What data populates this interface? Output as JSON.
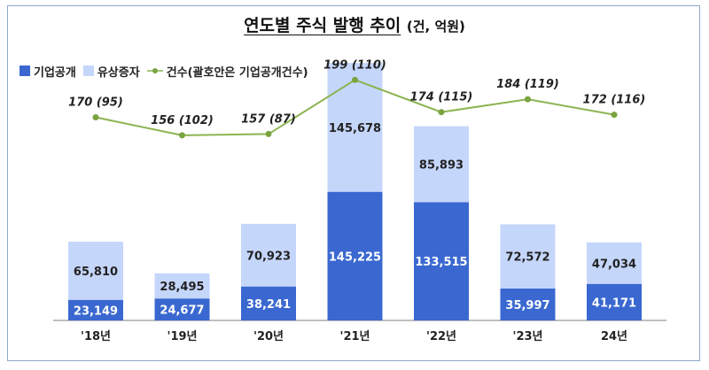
{
  "title": "연도별 주식 발행 추이",
  "unit": "(건, 억원)",
  "colors": {
    "ipo": "#3a68d0",
    "rights": "#c5d6fb",
    "line": "#8cb451",
    "line_marker": "#7aa33f",
    "label_dark": "#222222",
    "label_light": "#ffffff"
  },
  "legend": {
    "ipo": "기업공개",
    "rights": "유상증자",
    "count": "건수(괄호안은 기업공개건수)"
  },
  "chart_data": {
    "type": "bar",
    "stacked": true,
    "categories": [
      "'18년",
      "'19년",
      "'20년",
      "'21년",
      "'22년",
      "'23년",
      "24년"
    ],
    "series": [
      {
        "name": "기업공개",
        "values": [
          23149,
          24677,
          38241,
          145225,
          133515,
          35997,
          41171
        ]
      },
      {
        "name": "유상증자",
        "values": [
          65810,
          28495,
          70923,
          145678,
          85893,
          72572,
          47034
        ]
      }
    ],
    "line_series": {
      "name": "건수(괄호안은 기업공개건수)",
      "values": [
        170,
        156,
        157,
        199,
        174,
        184,
        172
      ],
      "ipo_counts": [
        95,
        102,
        87,
        110,
        115,
        119,
        116
      ],
      "labels": [
        "170 (95)",
        "156 (102)",
        "157 (87)",
        "199 (110)",
        "174 (115)",
        "184 (119)",
        "172 (116)"
      ]
    },
    "bar_labels": {
      "ipo": [
        "23,149",
        "24,677",
        "38,241",
        "145,225",
        "133,515",
        "35,997",
        "41,171"
      ],
      "rights": [
        "65,810",
        "28,495",
        "70,923",
        "145,678",
        "85,893",
        "72,572",
        "47,034"
      ]
    },
    "ylim": [
      0,
      295000
    ],
    "line_ylim": [
      0,
      215
    ],
    "grid": false,
    "legend_position": "top-left"
  }
}
